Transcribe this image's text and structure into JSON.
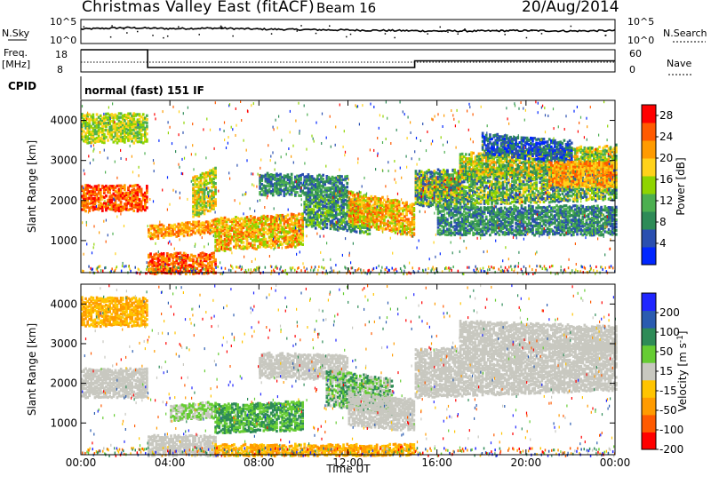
{
  "header": {
    "station": "Christmas Valley East (fitACF)",
    "beam": "Beam 16",
    "date": "20/Aug/2014"
  },
  "top_panels": {
    "nsky_label": "N.Sky",
    "nsearch_label": "N.Search",
    "noise_ticks": [
      "10^5",
      "10^0"
    ],
    "freq_label_1": "Freq.",
    "freq_label_2": "[MHz]",
    "freq_ticks": [
      "18",
      "8"
    ],
    "nave_label": "Nave",
    "nave_ticks": [
      "60",
      "0"
    ],
    "cpid_label": "CPID",
    "cpid_text": "normal (fast) 151 IF"
  },
  "colors": {
    "power_scale": [
      "#0026ff",
      "#2a4fb0",
      "#2e8b57",
      "#4caf50",
      "#8fd400",
      "#ffd21a",
      "#ff9b00",
      "#ff5a00",
      "#ff0000"
    ],
    "velocity_scale": [
      "#ff0000",
      "#ff5a00",
      "#ff9b00",
      "#ffc400",
      "#c8c8c0",
      "#66cc33",
      "#2e8b57",
      "#2a5bb0",
      "#2026ff"
    ]
  },
  "chart_data": [
    {
      "type": "line",
      "name": "noise",
      "x": [
        0,
        2,
        4,
        6,
        8,
        10,
        12,
        14,
        16,
        18,
        20,
        22,
        24
      ],
      "series": [
        {
          "name": "N.Sky",
          "values": [
            3.0,
            3.3,
            3.1,
            3.2,
            3.0,
            2.9,
            2.8,
            2.7,
            2.6,
            2.6,
            2.7,
            2.6,
            2.7
          ]
        }
      ],
      "ylim": [
        0,
        5
      ]
    },
    {
      "type": "line",
      "name": "frequency",
      "x": [
        0,
        3,
        3,
        15,
        15,
        24
      ],
      "series": [
        {
          "name": "Freq",
          "values": [
            18,
            18,
            10,
            10,
            13,
            13
          ]
        },
        {
          "name": "Nave",
          "values": [
            30,
            30,
            30,
            30,
            30,
            30
          ]
        }
      ],
      "ylim": [
        8,
        18
      ]
    },
    {
      "type": "heatmap",
      "name": "power",
      "xlabel": "Time UT",
      "ylabel": "Slant Range [km]",
      "x_ticks": [
        "00:00",
        "04:00",
        "08:00",
        "12:00",
        "16:00",
        "20:00",
        "00:00"
      ],
      "xlim": [
        0,
        24
      ],
      "ylim": [
        200,
        4500
      ],
      "y_ticks": [
        1000,
        2000,
        3000,
        4000
      ],
      "colorbar_label": "Power [dB]",
      "colorbar_ticks": [
        4,
        8,
        12,
        16,
        20,
        24,
        28
      ],
      "colorbar_range": [
        0,
        30
      ]
    },
    {
      "type": "heatmap",
      "name": "velocity",
      "xlabel": "Time UT",
      "ylabel": "Slant Range [km]",
      "x_ticks": [
        "00:00",
        "04:00",
        "08:00",
        "12:00",
        "16:00",
        "20:00",
        "00:00"
      ],
      "xlim": [
        0,
        24
      ],
      "ylim": [
        200,
        4500
      ],
      "y_ticks": [
        1000,
        2000,
        3000,
        4000
      ],
      "colorbar_label": "Velocity [m s",
      "colorbar_label_sup": "-1",
      "colorbar_label_end": "]",
      "colorbar_ticks": [
        "200",
        "100",
        "50",
        "15",
        "-15",
        "-50",
        "-100",
        "-200"
      ]
    }
  ]
}
